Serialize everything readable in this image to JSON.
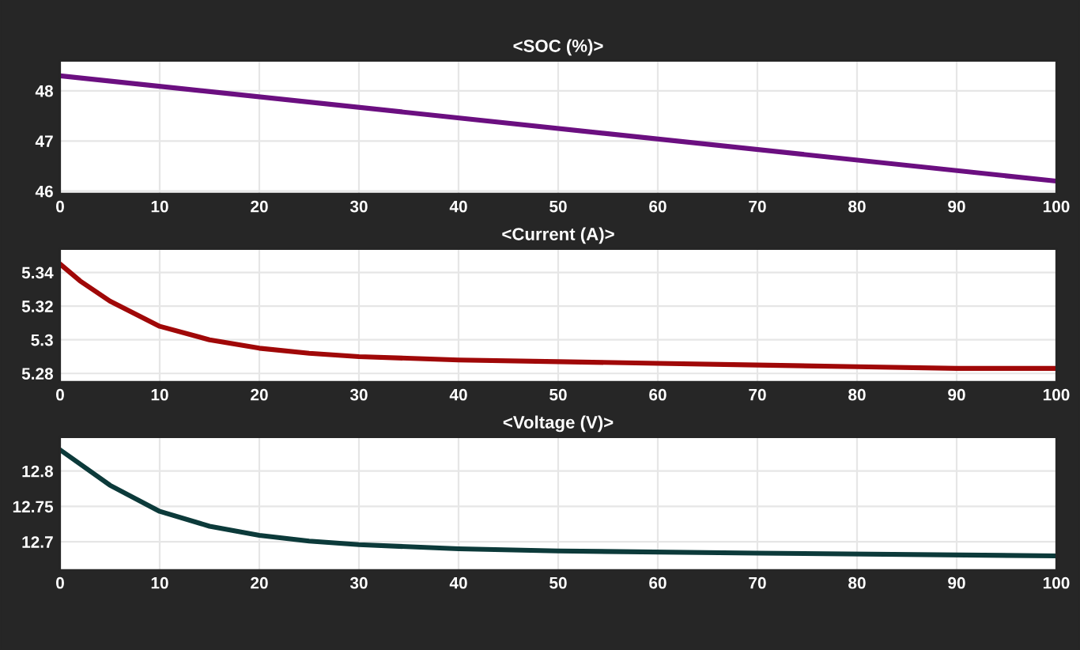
{
  "chart_data": [
    {
      "type": "line",
      "title": "<SOC (%)>",
      "x": [
        0,
        100
      ],
      "series": [
        {
          "color": "#6b0f80",
          "values": [
            48.3,
            46.2
          ]
        }
      ],
      "xlim": [
        0,
        100
      ],
      "xticks": [
        0,
        10,
        20,
        30,
        40,
        50,
        60,
        70,
        80,
        90,
        100
      ],
      "ylim": [
        45.95,
        48.6
      ],
      "yticks": [
        46,
        47,
        48
      ],
      "grid": true
    },
    {
      "type": "line",
      "title": "<Current (A)>",
      "x": [
        0,
        2,
        5,
        10,
        15,
        20,
        25,
        30,
        40,
        50,
        60,
        70,
        80,
        90,
        100
      ],
      "series": [
        {
          "color": "#a00808",
          "values": [
            5.345,
            5.335,
            5.323,
            5.308,
            5.3,
            5.295,
            5.292,
            5.29,
            5.288,
            5.287,
            5.286,
            5.285,
            5.284,
            5.283,
            5.283
          ]
        }
      ],
      "xlim": [
        0,
        100
      ],
      "xticks": [
        0,
        10,
        20,
        30,
        40,
        50,
        60,
        70,
        80,
        90,
        100
      ],
      "ylim": [
        5.275,
        5.354
      ],
      "yticks": [
        5.28,
        5.3,
        5.32,
        5.34
      ],
      "grid": true
    },
    {
      "type": "line",
      "title": "<Voltage (V)>",
      "x": [
        0,
        5,
        10,
        15,
        20,
        25,
        30,
        40,
        50,
        70,
        100
      ],
      "series": [
        {
          "color": "#0c3a3a",
          "values": [
            12.83,
            12.78,
            12.743,
            12.722,
            12.709,
            12.701,
            12.696,
            12.69,
            12.687,
            12.684,
            12.68
          ]
        }
      ],
      "xlim": [
        0,
        100
      ],
      "xticks": [
        0,
        10,
        20,
        30,
        40,
        50,
        60,
        70,
        80,
        90,
        100
      ],
      "ylim": [
        12.66,
        12.848
      ],
      "yticks": [
        12.7,
        12.75,
        12.8
      ],
      "grid": true
    }
  ]
}
